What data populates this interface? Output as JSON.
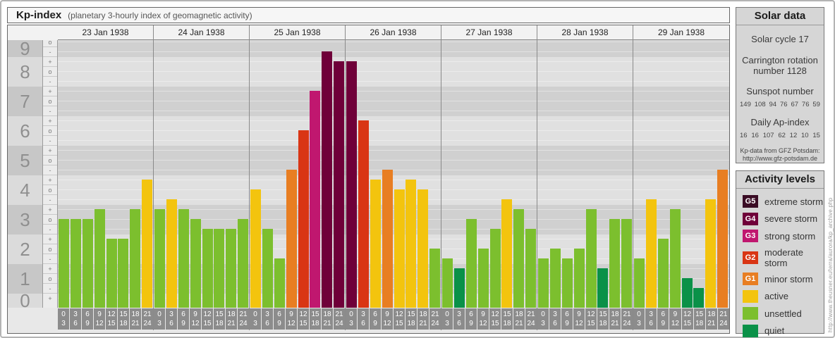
{
  "header": {
    "title": "Kp-index",
    "subtitle": "(planetary 3-hourly index of geomagnetic activity)"
  },
  "watermark": "http://www.theusner.eu/terra/aurora/kp_archive.php",
  "y_axis": {
    "numbers": [
      "9",
      "8",
      "7",
      "6",
      "5",
      "4",
      "3",
      "2",
      "1",
      "0"
    ],
    "subticks": {
      "plus": "+",
      "mid": "o",
      "minus": "-"
    }
  },
  "colors": {
    "G5": "#3a0c24",
    "G4": "#6f0039",
    "G3": "#c0176f",
    "G2": "#d93514",
    "G1": "#e87e22",
    "active": "#f3c40e",
    "unsettled": "#7cbf2e",
    "quiet": "#0a9148"
  },
  "chart_data": {
    "type": "bar",
    "title": "Kp-index (planetary 3-hourly index of geomagnetic activity)",
    "ylabel": "Kp",
    "ylim": [
      0,
      9
    ],
    "grid": "horizontal thirds, alternating unit bands",
    "slot_hours": [
      [
        "0",
        "3"
      ],
      [
        "3",
        "6"
      ],
      [
        "6",
        "9"
      ],
      [
        "9",
        "12"
      ],
      [
        "12",
        "15"
      ],
      [
        "15",
        "18"
      ],
      [
        "18",
        "21"
      ],
      [
        "21",
        "24"
      ]
    ],
    "days": [
      {
        "date": "23 Jan 1938",
        "kp": [
          "3o",
          "3o",
          "3o",
          "3+",
          "2+",
          "2+",
          "3+",
          "4+"
        ],
        "values": [
          3.0,
          3.0,
          3.0,
          3.33,
          2.33,
          2.33,
          3.33,
          4.33
        ],
        "levels": [
          "unsettled",
          "unsettled",
          "unsettled",
          "unsettled",
          "unsettled",
          "unsettled",
          "unsettled",
          "active"
        ]
      },
      {
        "date": "24 Jan 1938",
        "kp": [
          "3+",
          "4-",
          "3+",
          "3o",
          "3-",
          "3-",
          "3-",
          "3o"
        ],
        "values": [
          3.33,
          3.67,
          3.33,
          3.0,
          2.67,
          2.67,
          2.67,
          3.0
        ],
        "levels": [
          "unsettled",
          "active",
          "unsettled",
          "unsettled",
          "unsettled",
          "unsettled",
          "unsettled",
          "unsettled"
        ]
      },
      {
        "date": "25 Jan 1938",
        "kp": [
          "4o",
          "3-",
          "2-",
          "5-",
          "6o",
          "7+",
          "9-",
          "8+"
        ],
        "values": [
          4.0,
          2.67,
          1.67,
          4.67,
          6.0,
          7.33,
          8.67,
          8.33
        ],
        "levels": [
          "active",
          "unsettled",
          "unsettled",
          "G1",
          "G2",
          "G3",
          "G4",
          "G4"
        ]
      },
      {
        "date": "26 Jan 1938",
        "kp": [
          "8+",
          "6+",
          "4+",
          "5-",
          "4o",
          "4+",
          "4o",
          "2o"
        ],
        "values": [
          8.33,
          6.33,
          4.33,
          4.67,
          4.0,
          4.33,
          4.0,
          2.0
        ],
        "levels": [
          "G4",
          "G2",
          "active",
          "G1",
          "active",
          "active",
          "active",
          "unsettled"
        ]
      },
      {
        "date": "27 Jan 1938",
        "kp": [
          "2-",
          "1+",
          "3o",
          "2o",
          "3-",
          "4-",
          "3+",
          "3-"
        ],
        "values": [
          1.67,
          1.33,
          3.0,
          2.0,
          2.67,
          3.67,
          3.33,
          2.67
        ],
        "levels": [
          "unsettled",
          "quiet",
          "unsettled",
          "unsettled",
          "unsettled",
          "active",
          "unsettled",
          "unsettled"
        ]
      },
      {
        "date": "28 Jan 1938",
        "kp": [
          "2-",
          "2o",
          "2-",
          "2o",
          "3+",
          "1+",
          "3o",
          "3o"
        ],
        "values": [
          1.67,
          2.0,
          1.67,
          2.0,
          3.33,
          1.33,
          3.0,
          3.0
        ],
        "levels": [
          "unsettled",
          "unsettled",
          "unsettled",
          "unsettled",
          "unsettled",
          "quiet",
          "unsettled",
          "unsettled"
        ]
      },
      {
        "date": "29 Jan 1938",
        "kp": [
          "2-",
          "4-",
          "2+",
          "3+",
          "1o",
          "1-",
          "4-",
          "5-"
        ],
        "values": [
          1.67,
          3.67,
          2.33,
          3.33,
          1.0,
          0.67,
          3.67,
          4.67
        ],
        "levels": [
          "unsettled",
          "active",
          "unsettled",
          "unsettled",
          "quiet",
          "quiet",
          "active",
          "G1"
        ]
      }
    ]
  },
  "solar_data": {
    "title": "Solar data",
    "solar_cycle": "Solar cycle 17",
    "carrington_line1": "Carrington rotation",
    "carrington_line2": "number 1128",
    "sunspot_title": "Sunspot number",
    "sunspot_values": [
      "149",
      "108",
      "94",
      "76",
      "67",
      "76",
      "59"
    ],
    "ap_title": "Daily Ap-index",
    "ap_values": [
      "16",
      "16",
      "107",
      "62",
      "12",
      "10",
      "15"
    ],
    "credit_line1": "Kp-data from GFZ Potsdam:",
    "credit_line2": "http://www.gfz-potsdam.de"
  },
  "activity_levels": {
    "title": "Activity levels",
    "items": [
      {
        "code": "G5",
        "label": "extreme storm",
        "color": "#3a0c24"
      },
      {
        "code": "G4",
        "label": "severe storm",
        "color": "#6f0039"
      },
      {
        "code": "G3",
        "label": "strong storm",
        "color": "#c0176f"
      },
      {
        "code": "G2",
        "label": "moderate storm",
        "color": "#d93514"
      },
      {
        "code": "G1",
        "label": "minor storm",
        "color": "#e87e22"
      },
      {
        "code": "",
        "label": "active",
        "color": "#f3c40e"
      },
      {
        "code": "",
        "label": "unsettled",
        "color": "#7cbf2e"
      },
      {
        "code": "",
        "label": "quiet",
        "color": "#0a9148"
      }
    ]
  }
}
